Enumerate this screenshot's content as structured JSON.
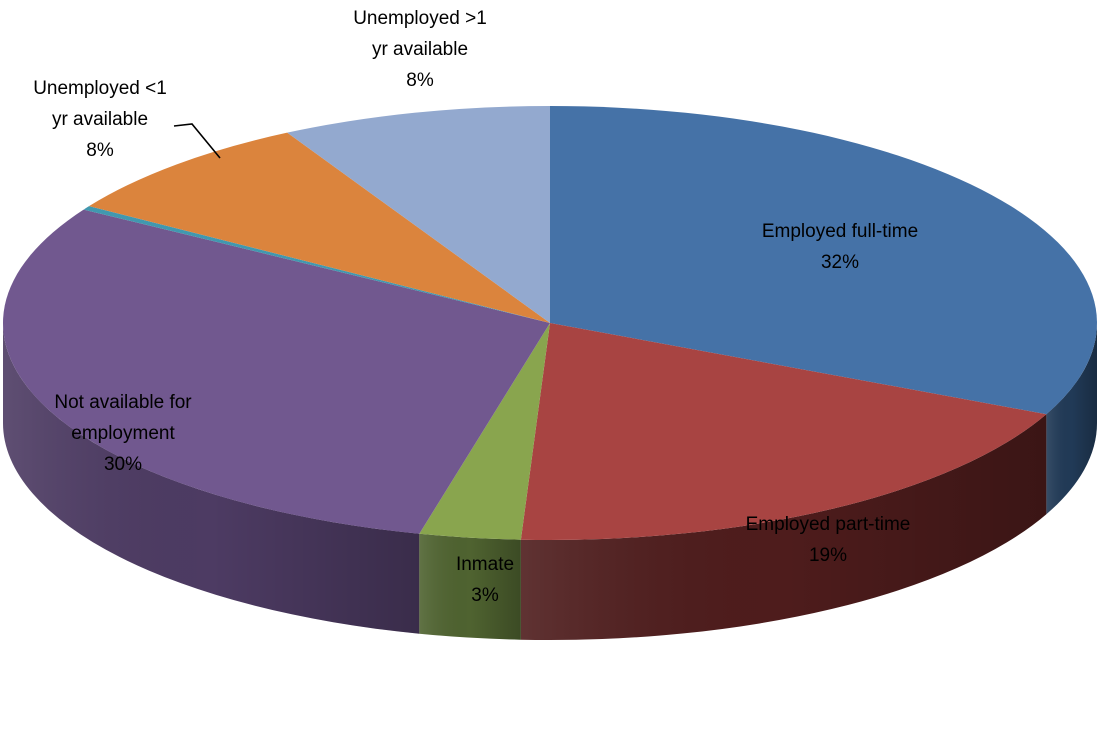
{
  "chart_data": {
    "type": "pie",
    "style": "3d",
    "title": "",
    "legend": "none",
    "slices": [
      {
        "label_lines": [
          "Employed full-time"
        ],
        "label": "Employed full-time",
        "value": 32,
        "value_label": "32%",
        "color": "#4572A7",
        "side_color": "#213a57"
      },
      {
        "label_lines": [
          "Employed part-time"
        ],
        "label": "Employed part-time",
        "value": 19,
        "value_label": "19%",
        "color": "#A84442",
        "side_color": "#4e1c1c"
      },
      {
        "label_lines": [
          "Inmate"
        ],
        "label": "Inmate",
        "value": 3,
        "value_label": "3%",
        "color": "#89A54E",
        "side_color": "#4f6330"
      },
      {
        "label_lines": [
          "Not available for",
          "employment"
        ],
        "label": "Not available for employment",
        "value": 30,
        "value_label": "30%",
        "color": "#71588F",
        "side_color": "#4d3b63"
      },
      {
        "label_lines": [],
        "label": "",
        "value": 0.3,
        "value_label": "",
        "color": "#4198AF",
        "side_color": "#255766"
      },
      {
        "label_lines": [
          "Unemployed <1",
          "yr available"
        ],
        "label": "Unemployed <1 yr available",
        "value": 8,
        "value_label": "8%",
        "color": "#DB843D",
        "side_color": "#7a4a22"
      },
      {
        "label_lines": [
          "Unemployed >1",
          "yr available"
        ],
        "label": "Unemployed >1 yr available",
        "value": 8,
        "value_label": "8%",
        "color": "#93A9CF",
        "side_color": "#55627a"
      }
    ]
  }
}
